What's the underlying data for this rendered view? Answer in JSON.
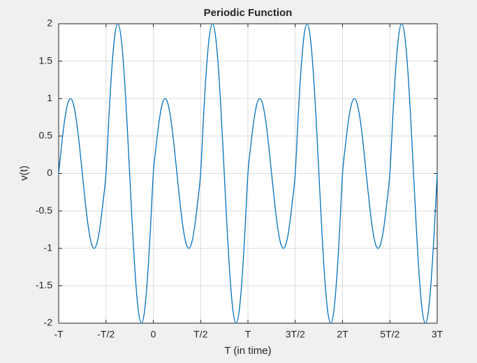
{
  "chart_data": {
    "type": "line",
    "title": "Periodic Function",
    "xlabel": "T (in time)",
    "ylabel": "v(t)",
    "color": "#0072bd",
    "grid": true,
    "xlim": [
      -1,
      3
    ],
    "ylim": [
      -2,
      2
    ],
    "xticks": [
      {
        "value": -1,
        "label": "-T"
      },
      {
        "value": -0.5,
        "label": "-T/2"
      },
      0,
      {
        "value": 0.5,
        "label": "T/2"
      },
      {
        "value": 1,
        "label": "T"
      },
      {
        "value": 1.5,
        "label": "3T/2"
      },
      {
        "value": 2,
        "label": "2T"
      },
      {
        "value": 2.5,
        "label": "5T/2"
      },
      {
        "value": 3,
        "label": "3T"
      }
    ],
    "yticks": [
      -2,
      -1.5,
      -1,
      -0.5,
      0,
      0.5,
      1,
      1.5,
      2
    ],
    "x": [
      -1,
      -0.96875,
      -0.9375,
      -0.90625,
      -0.875,
      -0.84375,
      -0.8125,
      -0.78125,
      -0.75,
      -0.71875,
      -0.6875,
      -0.65625,
      -0.625,
      -0.59375,
      -0.5625,
      -0.53125,
      -0.5,
      -0.46875,
      -0.4375,
      -0.40625,
      -0.375,
      -0.34375,
      -0.3125,
      -0.28125,
      -0.25,
      -0.21875,
      -0.1875,
      -0.15625,
      -0.125,
      -0.09375,
      -0.0625,
      -0.03125,
      0,
      0.03125,
      0.0625,
      0.09375,
      0.125,
      0.15625,
      0.1875,
      0.21875,
      0.25,
      0.28125,
      0.3125,
      0.34375,
      0.375,
      0.40625,
      0.4375,
      0.46875,
      0.5,
      0.53125,
      0.5625,
      0.59375,
      0.625,
      0.65625,
      0.6875,
      0.71875,
      0.75,
      0.78125,
      0.8125,
      0.84375,
      0.875,
      0.90625,
      0.9375,
      0.96875,
      1,
      1.03125,
      1.0625,
      1.09375,
      1.125,
      1.15625,
      1.1875,
      1.21875,
      1.25,
      1.28125,
      1.3125,
      1.34375,
      1.375,
      1.40625,
      1.4375,
      1.46875,
      1.5,
      1.53125,
      1.5625,
      1.59375,
      1.625,
      1.65625,
      1.6875,
      1.71875,
      1.75,
      1.78125,
      1.8125,
      1.84375,
      1.875,
      1.90625,
      1.9375,
      1.96875,
      2,
      2.03125,
      2.0625,
      2.09375,
      2.125,
      2.15625,
      2.1875,
      2.21875,
      2.25,
      2.28125,
      2.3125,
      2.34375,
      2.375,
      2.40625,
      2.4375,
      2.46875,
      2.5,
      2.53125,
      2.5625,
      2.59375,
      2.625,
      2.65625,
      2.6875,
      2.71875,
      2.75,
      2.78125,
      2.8125,
      2.84375,
      2.875,
      2.90625,
      2.9375,
      2.96875,
      3
    ],
    "values": [
      0,
      0.383,
      0.707,
      0.924,
      1,
      0.924,
      0.707,
      0.383,
      0,
      -0.383,
      -0.707,
      -0.924,
      -1,
      -0.924,
      -0.707,
      -0.383,
      0,
      0.765,
      1.414,
      1.848,
      2,
      1.848,
      1.414,
      0.765,
      0,
      -0.765,
      -1.414,
      -1.848,
      -2,
      -1.848,
      -1.414,
      -0.765,
      0,
      0.383,
      0.707,
      0.924,
      1,
      0.924,
      0.707,
      0.383,
      0,
      -0.383,
      -0.707,
      -0.924,
      -1,
      -0.924,
      -0.707,
      -0.383,
      0,
      0.765,
      1.414,
      1.848,
      2,
      1.848,
      1.414,
      0.765,
      0,
      -0.765,
      -1.414,
      -1.848,
      -2,
      -1.848,
      -1.414,
      -0.765,
      0,
      0.383,
      0.707,
      0.924,
      1,
      0.924,
      0.707,
      0.383,
      0,
      -0.383,
      -0.707,
      -0.924,
      -1,
      -0.924,
      -0.707,
      -0.383,
      0,
      0.765,
      1.414,
      1.848,
      2,
      1.848,
      1.414,
      0.765,
      0,
      -0.765,
      -1.414,
      -1.848,
      -2,
      -1.848,
      -1.414,
      -0.765,
      0,
      0.383,
      0.707,
      0.924,
      1,
      0.924,
      0.707,
      0.383,
      0,
      -0.383,
      -0.707,
      -0.924,
      -1,
      -0.924,
      -0.707,
      -0.383,
      0,
      0.765,
      1.414,
      1.848,
      2,
      1.848,
      1.414,
      0.765,
      0,
      -0.765,
      -1.414,
      -1.848,
      -2,
      -1.848,
      -1.414,
      -0.765,
      0
    ]
  }
}
